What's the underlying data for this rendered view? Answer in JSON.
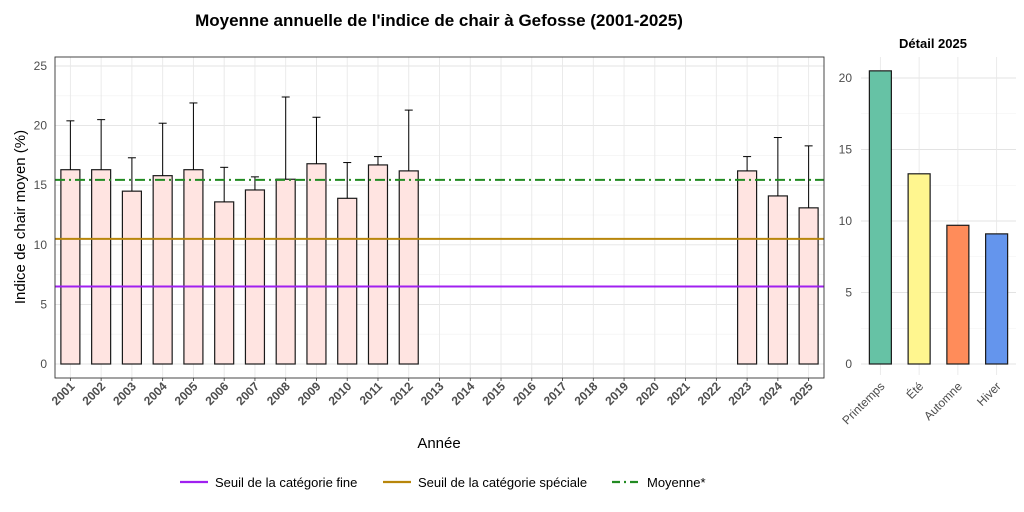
{
  "chart_data": [
    {
      "type": "bar",
      "title": "Moyenne annuelle de l'indice de chair à Gefosse (2001-2025)",
      "xlabel": "Année",
      "ylabel": "Indice de chair moyen (%)",
      "ylim": [
        0,
        25
      ],
      "yticks": [
        0,
        5,
        10,
        15,
        20,
        25
      ],
      "grid": true,
      "bar_color": "#ffe4e1",
      "categories": [
        "2001",
        "2002",
        "2003",
        "2004",
        "2005",
        "2006",
        "2007",
        "2008",
        "2009",
        "2010",
        "2011",
        "2012",
        "2013",
        "2014",
        "2015",
        "2016",
        "2017",
        "2018",
        "2019",
        "2020",
        "2021",
        "2022",
        "2023",
        "2024",
        "2025"
      ],
      "values": [
        16.3,
        16.3,
        14.5,
        15.8,
        16.3,
        13.6,
        14.6,
        15.5,
        16.8,
        13.9,
        16.7,
        16.2,
        null,
        null,
        null,
        null,
        null,
        null,
        null,
        null,
        null,
        null,
        16.2,
        14.1,
        13.1
      ],
      "error_upper": [
        20.4,
        20.5,
        17.3,
        20.2,
        21.9,
        16.5,
        15.7,
        22.4,
        20.7,
        16.9,
        17.4,
        21.3,
        null,
        null,
        null,
        null,
        null,
        null,
        null,
        null,
        null,
        null,
        17.4,
        19.0,
        18.3
      ],
      "reference_lines": [
        {
          "name": "Seuil de la catégorie fine",
          "value": 6.5,
          "color": "#a020f0",
          "style": "solid"
        },
        {
          "name": "Seuil de la catégorie spéciale",
          "value": 10.5,
          "color": "#b8860b",
          "style": "solid"
        },
        {
          "name": "Moyenne*",
          "value": 15.45,
          "color": "#228b22",
          "style": "dashdot"
        }
      ],
      "legend": {
        "placement": "bottom",
        "entries": [
          "Seuil de la catégorie fine",
          "Seuil de la catégorie spéciale",
          "Moyenne*"
        ]
      }
    },
    {
      "type": "bar",
      "title": "Détail 2025",
      "xlabel": "",
      "ylabel": "",
      "ylim": [
        0,
        21.5
      ],
      "yticks": [
        0,
        5,
        10,
        15,
        20
      ],
      "grid": true,
      "categories": [
        "Printemps",
        "Été",
        "Automne",
        "Hiver"
      ],
      "values": [
        20.5,
        13.3,
        9.7,
        9.1
      ],
      "colors": [
        "#66c2a5",
        "#fff68f",
        "#ff8c5a",
        "#6495ed"
      ]
    }
  ]
}
